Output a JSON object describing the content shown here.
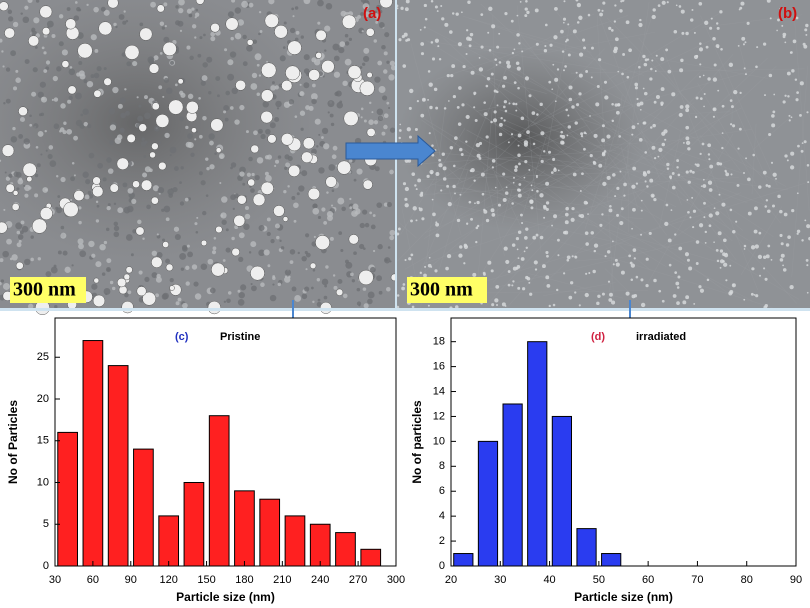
{
  "images": [
    {
      "label": "(a)",
      "scale_bar": "300 nm"
    },
    {
      "label": "(b)",
      "scale_bar": "300 nm"
    }
  ],
  "chart_data": [
    {
      "type": "bar",
      "label": "(c)",
      "title": "Pristine",
      "x_label": "Particle size (nm)",
      "y_label": "No of Particles",
      "x": [
        40,
        60,
        80,
        100,
        120,
        140,
        160,
        180,
        200,
        220,
        240,
        260,
        280
      ],
      "values": [
        16,
        27,
        24,
        14,
        6,
        10,
        18,
        9,
        8,
        6,
        5,
        4,
        2
      ],
      "color": "#ff2020",
      "xlim": [
        30,
        300
      ],
      "xticks": [
        30,
        60,
        90,
        120,
        150,
        180,
        210,
        240,
        270,
        300
      ],
      "ylim": [
        0,
        29.7
      ],
      "yticks": [
        0,
        5,
        10,
        15,
        20,
        25
      ]
    },
    {
      "type": "bar",
      "label": "(d)",
      "title": "irradiated",
      "x_label": "Particle size (nm)",
      "y_label": "No of particles",
      "x": [
        22.5,
        27.5,
        32.5,
        37.5,
        42.5,
        47.5,
        52.5
      ],
      "values": [
        1,
        10,
        13,
        18,
        12,
        3,
        1
      ],
      "color": "#2a3cf0",
      "xlim": [
        20,
        90
      ],
      "xticks": [
        20,
        30,
        40,
        50,
        60,
        70,
        80,
        90
      ],
      "ylim": [
        0,
        19.9
      ],
      "yticks": [
        0,
        2,
        4,
        6,
        8,
        10,
        12,
        14,
        16,
        18
      ]
    }
  ]
}
